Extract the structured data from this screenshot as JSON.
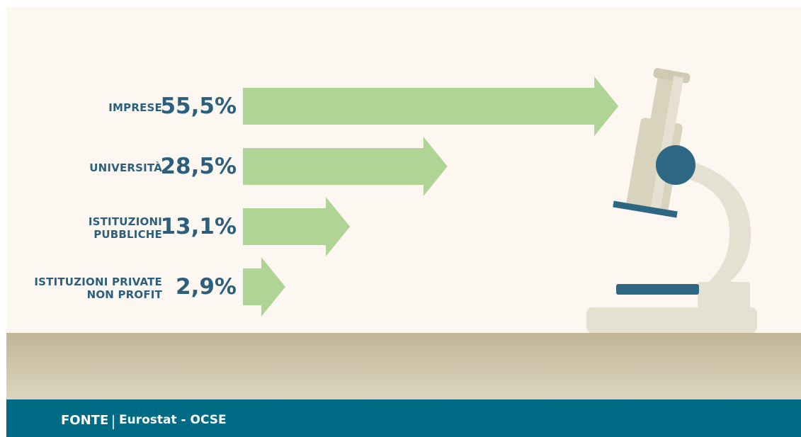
{
  "chart_data": {
    "type": "arrow-bar",
    "categories": [
      "IMPRESE",
      "UNIVERSITÀ",
      "ISTITUZIONI PUBBLICHE",
      "ISTITUZIONI PRIVATE NON PROFIT"
    ],
    "values": [
      55.5,
      28.5,
      13.1,
      2.9
    ],
    "value_labels": [
      "55,5%",
      "28,5%",
      "13,1%",
      "2,9%"
    ],
    "color": "#b0d496",
    "label_color": "#2c5f7c"
  },
  "footer": {
    "source_label": "FONTE",
    "source": "Eurostat - OCSE"
  }
}
